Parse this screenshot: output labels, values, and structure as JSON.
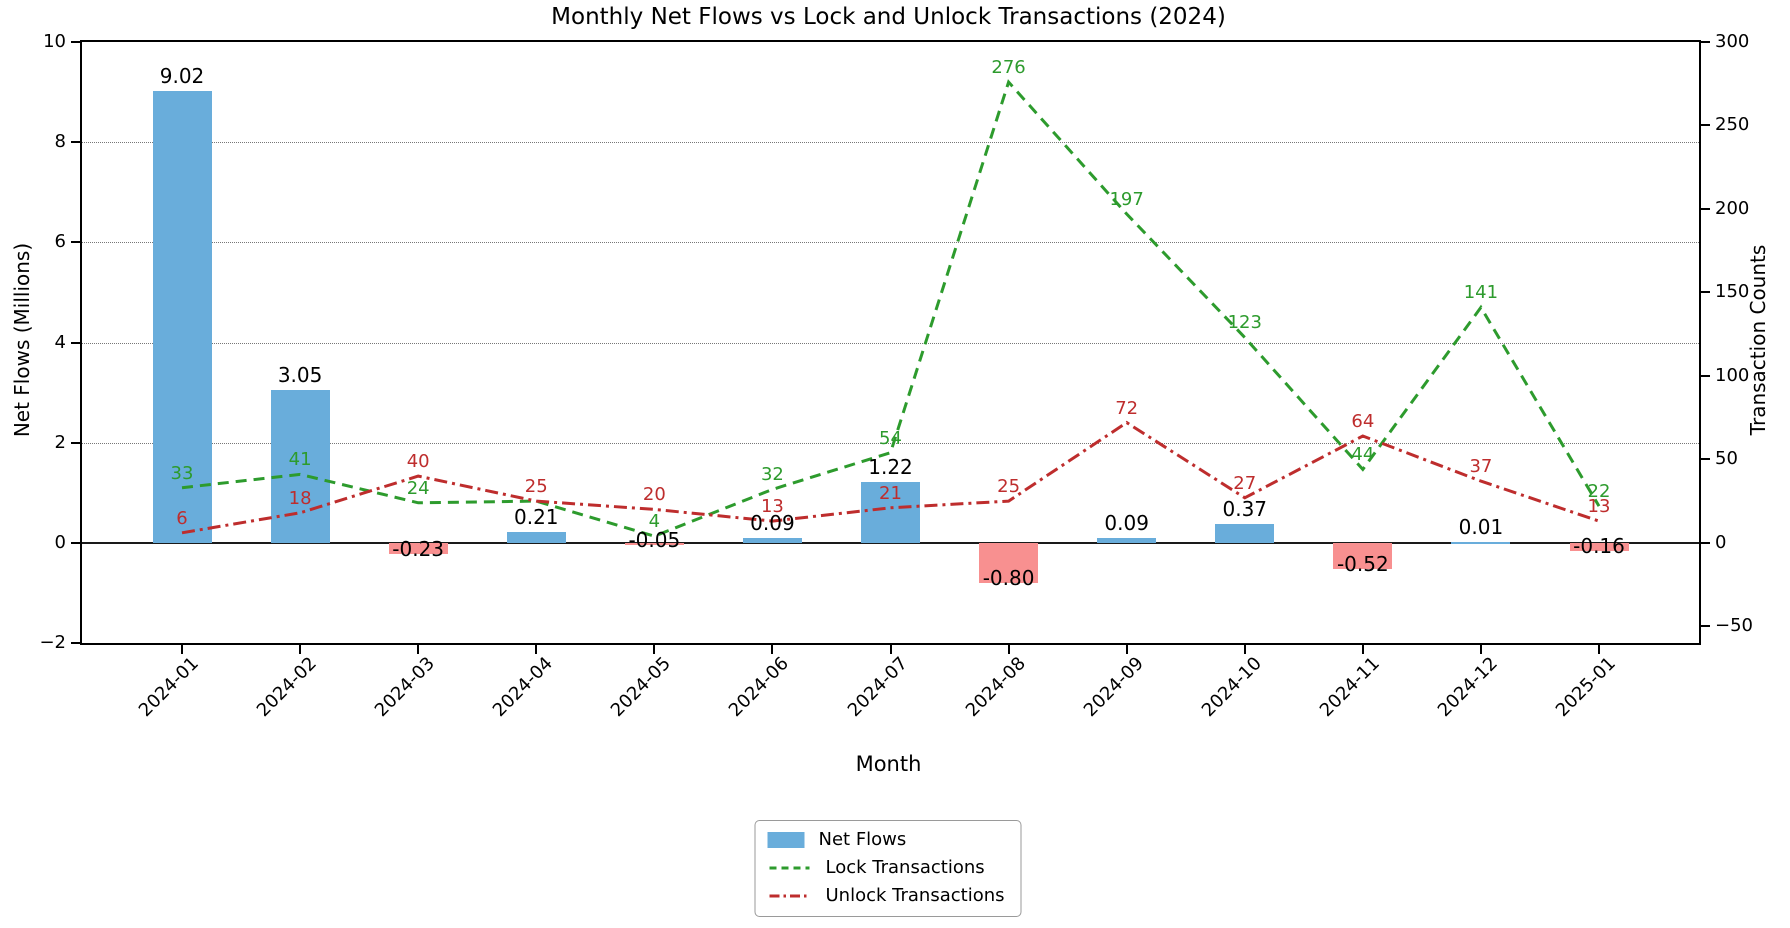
{
  "chart_data": {
    "type": "bar",
    "title": "Monthly Net Flows vs Lock and Unlock Transactions (2024)",
    "xlabel": "Month",
    "categories": [
      "2024-01",
      "2024-02",
      "2024-03",
      "2024-04",
      "2024-05",
      "2024-06",
      "2024-07",
      "2024-08",
      "2024-09",
      "2024-10",
      "2024-11",
      "2024-12",
      "2025-01"
    ],
    "series": [
      {
        "name": "Net Flows",
        "kind": "bar",
        "axis": "left",
        "values": [
          9.02,
          3.05,
          -0.23,
          0.21,
          -0.05,
          0.09,
          1.22,
          -0.8,
          0.09,
          0.37,
          -0.52,
          0.01,
          -0.16
        ],
        "labels": [
          "9.02",
          "3.05",
          "-0.23",
          "0.21",
          "-0.05",
          "0.09",
          "1.22",
          "-0.80",
          "0.09",
          "0.37",
          "-0.52",
          "0.01",
          "-0.16"
        ],
        "positive_color": "#69ADDB",
        "negative_color": "#F89090"
      },
      {
        "name": "Lock Transactions",
        "kind": "line",
        "style": "dashed",
        "axis": "right",
        "color": "#2D9B2D",
        "values": [
          33,
          41,
          24,
          25,
          4,
          32,
          54,
          276,
          197,
          123,
          44,
          141,
          22
        ],
        "labels": [
          "33",
          "41",
          "24",
          "",
          "4",
          "32",
          "54",
          "276",
          "197",
          "123",
          "44",
          "141",
          "22"
        ]
      },
      {
        "name": "Unlock Transactions",
        "kind": "line",
        "style": "dashdot",
        "axis": "right",
        "color": "#BE2D2D",
        "values": [
          6,
          18,
          40,
          25,
          20,
          13,
          21,
          25,
          72,
          27,
          64,
          37,
          13
        ],
        "labels": [
          "6",
          "18",
          "40",
          "25",
          "20",
          "13",
          "21",
          "25",
          "72",
          "27",
          "64",
          "37",
          "13"
        ]
      }
    ],
    "left_axis": {
      "label": "Net Flows (Millions)",
      "lim": [
        -2,
        10
      ],
      "ticks": [
        10,
        8,
        6,
        4,
        2,
        0,
        -2
      ],
      "tick_labels": [
        "10",
        "8",
        "6",
        "4",
        "2",
        "0",
        "−2"
      ],
      "gridline_ticks": [
        8,
        6,
        4,
        2
      ]
    },
    "right_axis": {
      "label": "Transaction Counts",
      "lim": [
        -60,
        300
      ],
      "ticks": [
        300,
        250,
        200,
        150,
        100,
        50,
        0,
        -50
      ],
      "tick_labels": [
        "300",
        "250",
        "200",
        "150",
        "100",
        "50",
        "0",
        "−50"
      ]
    },
    "grid": true,
    "legend_position": "below-center",
    "zero_line": true
  }
}
